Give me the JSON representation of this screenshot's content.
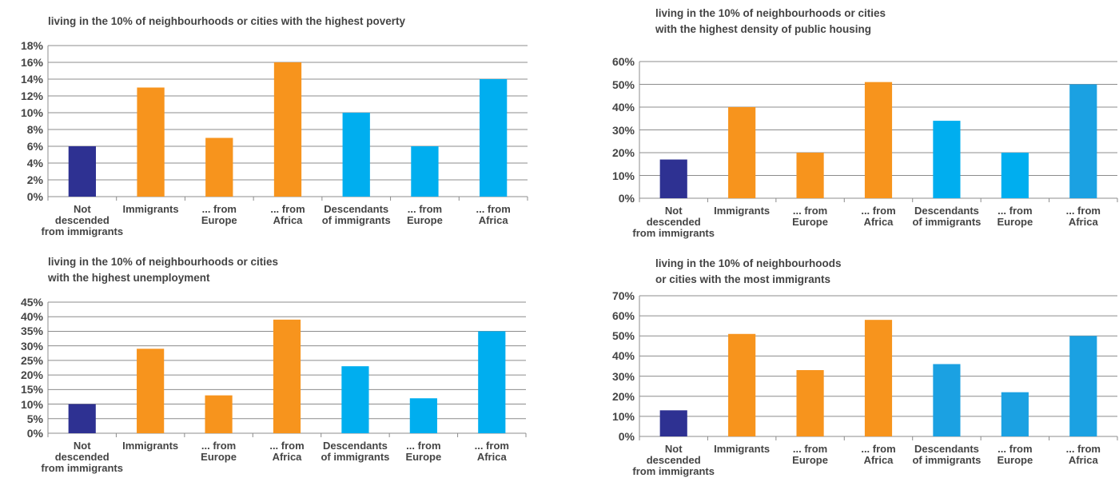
{
  "chart_data": [
    {
      "type": "bar",
      "title": "living in the 10% of neighbourhoods or cities with the highest poverty",
      "categories": [
        "Not\ndescended\nfrom immigrants",
        "Immigrants",
        "... from\nEurope",
        "... from\nAfrica",
        "Descendants\nof immigrants",
        "... from\nEurope",
        "... from\nAfrica"
      ],
      "values": [
        6,
        13,
        7,
        16,
        10,
        6,
        14
      ],
      "colors": [
        "#2e3192",
        "#f7941d",
        "#f7941d",
        "#f7941d",
        "#00aeef",
        "#00aeef",
        "#00aeef"
      ],
      "ylim": [
        0,
        18
      ],
      "yticks": [
        {
          "value": 0,
          "label": "0%"
        },
        {
          "value": 2,
          "label": "2%"
        },
        {
          "value": 4,
          "label": "4%"
        },
        {
          "value": 6,
          "label": "6%"
        },
        {
          "value": 8,
          "label": "8%"
        },
        {
          "value": 10,
          "label": "10%"
        },
        {
          "value": 12,
          "label": "12%"
        },
        {
          "value": 14,
          "label": "14%"
        },
        {
          "value": 16,
          "label": "16%"
        },
        {
          "value": 18,
          "label": "18%"
        }
      ],
      "grid": true
    },
    {
      "type": "bar",
      "title": "living in the 10% of neighbourhoods or cities\nwith the highest density of public housing",
      "categories": [
        "Not\ndescended\nfrom immigrants",
        "Immigrants",
        "... from\nEurope",
        "... from\nAfrica",
        "Descendants\nof immigrants",
        "... from\nEurope",
        "... from\nAfrica"
      ],
      "values": [
        17,
        40,
        20,
        51,
        34,
        20,
        50
      ],
      "colors": [
        "#2e3192",
        "#f7941d",
        "#f7941d",
        "#f7941d",
        "#00aeef",
        "#00aeef",
        "#1ba1e2"
      ],
      "ylim": [
        0,
        60
      ],
      "yticks": [
        {
          "value": 0,
          "label": "0%"
        },
        {
          "value": 10,
          "label": "10%"
        },
        {
          "value": 20,
          "label": "20%"
        },
        {
          "value": 30,
          "label": "30%"
        },
        {
          "value": 40,
          "label": "40%"
        },
        {
          "value": 50,
          "label": "50%"
        },
        {
          "value": 60,
          "label": "60%"
        }
      ],
      "grid": true
    },
    {
      "type": "bar",
      "title": "living in the 10% of neighbourhoods or cities\nwith the highest unemployment",
      "categories": [
        "Not\ndescended\nfrom immigrants",
        "Immigrants",
        "... from\nEurope",
        "... from\nAfrica",
        "Descendants\nof immigrants",
        "... from\nEurope",
        "... from\nAfrica"
      ],
      "values": [
        10,
        29,
        13,
        39,
        23,
        12,
        35
      ],
      "colors": [
        "#2e3192",
        "#f7941d",
        "#f7941d",
        "#f7941d",
        "#00aeef",
        "#00aeef",
        "#00aeef"
      ],
      "ylim": [
        0,
        45
      ],
      "yticks": [
        {
          "value": 0,
          "label": "0%"
        },
        {
          "value": 5,
          "label": "5%"
        },
        {
          "value": 10,
          "label": "10%"
        },
        {
          "value": 15,
          "label": "15%"
        },
        {
          "value": 20,
          "label": "20%"
        },
        {
          "value": 25,
          "label": "25%"
        },
        {
          "value": 30,
          "label": "30%"
        },
        {
          "value": 35,
          "label": "35%"
        },
        {
          "value": 40,
          "label": "40%"
        },
        {
          "value": 45,
          "label": "45%"
        }
      ],
      "grid": true
    },
    {
      "type": "bar",
      "title": "living in the 10% of neighbourhoods\nor cities with the most immigrants",
      "categories": [
        "Not\ndescended\nfrom immigrants",
        "Immigrants",
        "... from\nEurope",
        "... from\nAfrica",
        "Descendants\nof immigrants",
        "... from\nEurope",
        "... from\nAfrica"
      ],
      "values": [
        13,
        51,
        33,
        58,
        36,
        22,
        50
      ],
      "colors": [
        "#2e3192",
        "#f7941d",
        "#f7941d",
        "#f7941d",
        "#1ba1e2",
        "#1ba1e2",
        "#1ba1e2"
      ],
      "ylim": [
        0,
        70
      ],
      "yticks": [
        {
          "value": 0,
          "label": "0%"
        },
        {
          "value": 10,
          "label": "10%"
        },
        {
          "value": 20,
          "label": "20%"
        },
        {
          "value": 30,
          "label": "30%"
        },
        {
          "value": 40,
          "label": "40%"
        },
        {
          "value": 50,
          "label": "50%"
        },
        {
          "value": 60,
          "label": "60%"
        },
        {
          "value": 70,
          "label": "70%"
        }
      ],
      "grid": true
    }
  ]
}
